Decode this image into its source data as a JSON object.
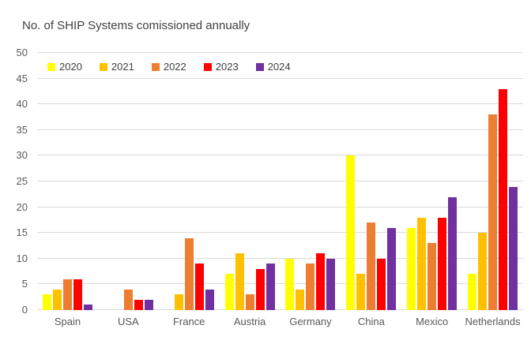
{
  "chart_data": {
    "type": "bar",
    "title": "No. of SHIP Systems comissioned annually",
    "categories": [
      "Spain",
      "USA",
      "France",
      "Austria",
      "Germany",
      "China",
      "Mexico",
      "Netherlands"
    ],
    "series": [
      {
        "name": "2020",
        "color": "#FFFF00",
        "values": [
          3,
          0,
          0,
          7,
          10,
          30,
          16,
          7
        ]
      },
      {
        "name": "2021",
        "color": "#FFC000",
        "values": [
          4,
          0,
          3,
          11,
          4,
          7,
          18,
          15
        ]
      },
      {
        "name": "2022",
        "color": "#ED7D31",
        "values": [
          6,
          4,
          14,
          3,
          9,
          17,
          13,
          38
        ]
      },
      {
        "name": "2023",
        "color": "#FF0000",
        "values": [
          6,
          2,
          9,
          8,
          11,
          10,
          18,
          43
        ]
      },
      {
        "name": "2024",
        "color": "#7030A0",
        "values": [
          1,
          2,
          4,
          9,
          10,
          16,
          22,
          24
        ]
      }
    ],
    "xlabel": "",
    "ylabel": "",
    "ylim": [
      0,
      50
    ],
    "ytick_step": 5,
    "yticks": [
      0,
      5,
      10,
      15,
      20,
      25,
      30,
      35,
      40,
      45,
      50
    ],
    "grid": true,
    "legend_position": "top-left-inside",
    "colors": {
      "background": "#FFFFFF",
      "gridline": "#D9D9D9",
      "title_text": "#404040",
      "axis_text": "#595959",
      "legend_text": "#404040"
    }
  }
}
